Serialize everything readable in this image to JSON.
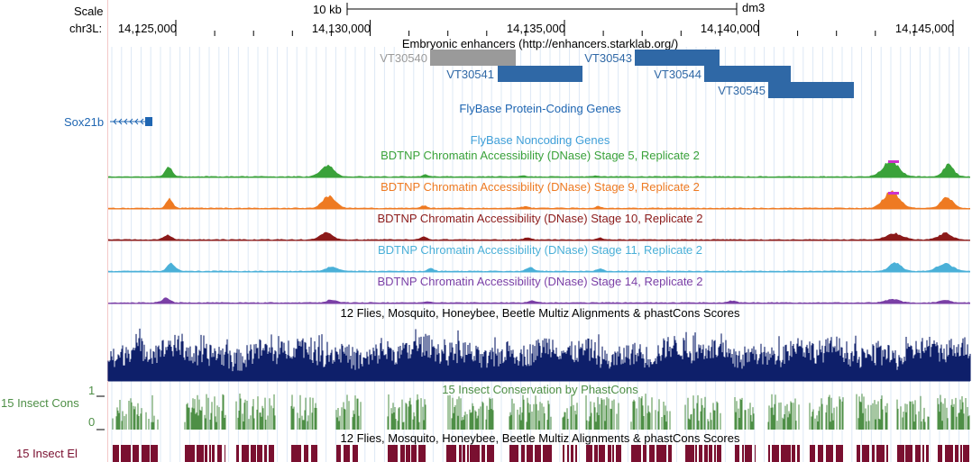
{
  "scale": {
    "label": "Scale",
    "bar_label": "10 kb",
    "assembly": "dm3"
  },
  "ruler": {
    "chrom_label": "chr3L:",
    "ticks": [
      {
        "pos": 14125000,
        "label": "14,125,000"
      },
      {
        "pos": 14130000,
        "label": "14,130,000"
      },
      {
        "pos": 14135000,
        "label": "14,135,000"
      },
      {
        "pos": 14140000,
        "label": "14,140,000"
      },
      {
        "pos": 14145000,
        "label": "14,145,000"
      }
    ]
  },
  "enhancers": {
    "title": "Embryonic enhancers (http://enhancers.starklab.org/)",
    "colors": {
      "gray": "#9a9a9a",
      "blue": "#2f68a6"
    },
    "items": [
      {
        "name": "VT30540",
        "color": "gray"
      },
      {
        "name": "VT30541",
        "color": "blue"
      },
      {
        "name": "VT30543",
        "color": "blue"
      },
      {
        "name": "VT30544",
        "color": "blue"
      },
      {
        "name": "VT30545",
        "color": "blue"
      }
    ]
  },
  "flybase_coding": {
    "title": "FlyBase Protein-Coding Genes",
    "color": "#1f66b2",
    "gene": "Sox21b"
  },
  "flybase_noncoding": {
    "title": "FlyBase Noncoding Genes",
    "color": "#3f9fd8"
  },
  "dnase_tracks": [
    {
      "title": "BDTNP Chromatin Accessibility (DNase) Stage 5, Replicate 2",
      "color": "#3aa23a"
    },
    {
      "title": "BDTNP Chromatin Accessibility (DNase) Stage 9, Replicate 2",
      "color": "#ee7a22"
    },
    {
      "title": "BDTNP Chromatin Accessibility (DNase) Stage 10, Replicate 2",
      "color": "#8b1a1a"
    },
    {
      "title": "BDTNP Chromatin Accessibility (DNase) Stage 11, Replicate 2",
      "color": "#4ab0d8"
    },
    {
      "title": "BDTNP Chromatin Accessibility (DNase) Stage 14, Replicate 2",
      "color": "#7a3fa6"
    }
  ],
  "multiz": {
    "title": "12 Flies, Mosquito, Honeybee, Beetle Multiz Alignments & phastCons Scores",
    "color": "#0e1f6a"
  },
  "insect_cons": {
    "title": "15 Insect Conservation by PhastCons",
    "side_label": "15 Insect Cons",
    "axis_max": "1",
    "axis_min": "0",
    "color": "#4e8f46"
  },
  "insect_el": {
    "title": "12 Flies, Mosquito, Honeybee, Beetle Multiz Alignments & phastCons Scores",
    "side_label": "15 Insect El",
    "color": "#7a1030"
  }
}
